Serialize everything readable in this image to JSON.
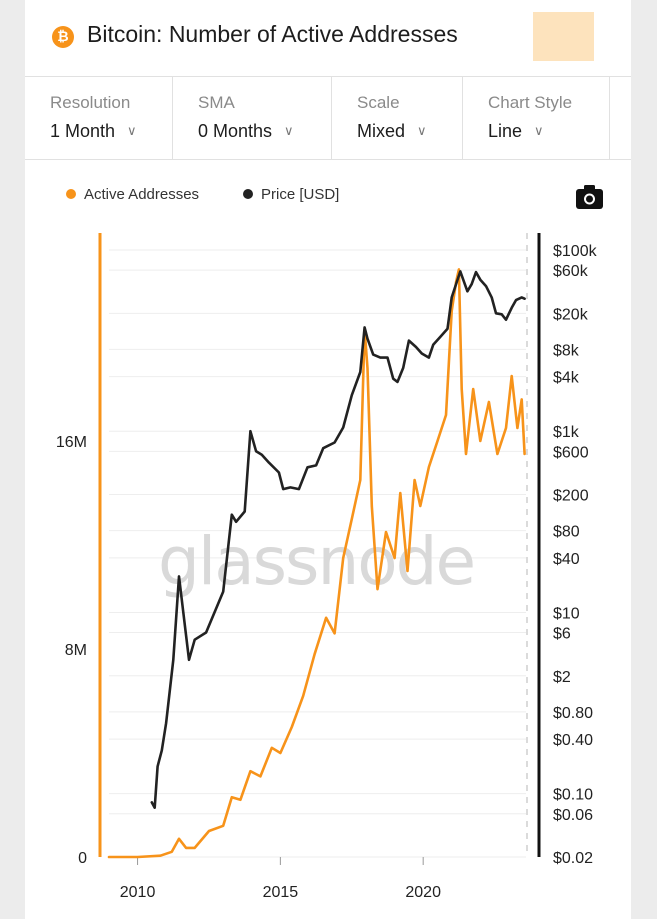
{
  "header": {
    "title": "Bitcoin: Number of Active Addresses",
    "icon": "bitcoin-icon",
    "icon_glyph": "₿"
  },
  "controls": [
    {
      "label": "Resolution",
      "value": "1 Month"
    },
    {
      "label": "SMA",
      "value": "0 Months"
    },
    {
      "label": "Scale",
      "value": "Mixed"
    },
    {
      "label": "Chart Style",
      "value": "Line"
    }
  ],
  "legend": [
    {
      "name": "Active Addresses",
      "color": "#f7931a"
    },
    {
      "name": "Price [USD]",
      "color": "#222222"
    }
  ],
  "watermark": "glassnode",
  "chart_data": {
    "type": "line",
    "x_ticks": [
      "2010",
      "2015",
      "2020"
    ],
    "left_axis": {
      "ticks": [
        {
          "v": 0,
          "label": "0"
        },
        {
          "v": 8000000,
          "label": "8M"
        },
        {
          "v": 16000000,
          "label": "16M"
        }
      ],
      "ylim": [
        0,
        24000000
      ],
      "scale": "linear"
    },
    "right_axis": {
      "scale": "log",
      "ylim": [
        0.02,
        100000
      ],
      "ticks": [
        {
          "v": 100000,
          "label": "$100k"
        },
        {
          "v": 60000,
          "label": "$60k"
        },
        {
          "v": 20000,
          "label": "$20k"
        },
        {
          "v": 8000,
          "label": "$8k"
        },
        {
          "v": 4000,
          "label": "$4k"
        },
        {
          "v": 1000,
          "label": "$1k"
        },
        {
          "v": 600,
          "label": "$600"
        },
        {
          "v": 200,
          "label": "$200"
        },
        {
          "v": 80,
          "label": "$80"
        },
        {
          "v": 40,
          "label": "$40"
        },
        {
          "v": 10,
          "label": "$10"
        },
        {
          "v": 6,
          "label": "$6"
        },
        {
          "v": 2,
          "label": "$2"
        },
        {
          "v": 0.8,
          "label": "$0.80"
        },
        {
          "v": 0.4,
          "label": "$0.40"
        },
        {
          "v": 0.1,
          "label": "$0.10"
        },
        {
          "v": 0.06,
          "label": "$0.06"
        },
        {
          "v": 0.02,
          "label": "$0.02"
        }
      ]
    },
    "series": [
      {
        "name": "Active Addresses",
        "axis": "left",
        "color": "#f7931a",
        "x": [
          2009.0,
          2010.0,
          2010.8,
          2011.2,
          2011.45,
          2011.7,
          2012.0,
          2012.5,
          2013.0,
          2013.3,
          2013.6,
          2013.95,
          2014.3,
          2014.7,
          2015.0,
          2015.4,
          2015.8,
          2016.2,
          2016.6,
          2016.9,
          2017.2,
          2017.5,
          2017.8,
          2017.95,
          2018.05,
          2018.2,
          2018.4,
          2018.7,
          2019.0,
          2019.2,
          2019.45,
          2019.7,
          2019.9,
          2020.2,
          2020.5,
          2020.8,
          2021.0,
          2021.15,
          2021.25,
          2021.35,
          2021.5,
          2021.75,
          2022.0,
          2022.3,
          2022.6,
          2022.9,
          2023.1,
          2023.3,
          2023.45,
          2023.55
        ],
        "y": [
          0,
          0,
          50000,
          200000,
          700000,
          350000,
          350000,
          1000000,
          1200000,
          2300000,
          2200000,
          3300000,
          3100000,
          4200000,
          4000000,
          5000000,
          6200000,
          7800000,
          9200000,
          8600000,
          11500000,
          13000000,
          14500000,
          20300000,
          18800000,
          13500000,
          10300000,
          12500000,
          11500000,
          14000000,
          11000000,
          14500000,
          13500000,
          15000000,
          16000000,
          17000000,
          21000000,
          22100000,
          22600000,
          18000000,
          15500000,
          18000000,
          16000000,
          17500000,
          15500000,
          16500000,
          18500000,
          16500000,
          17600000,
          15500000
        ]
      },
      {
        "name": "Price [USD]",
        "axis": "right",
        "color": "#222222",
        "x": [
          2010.5,
          2010.6,
          2010.7,
          2010.85,
          2011.0,
          2011.25,
          2011.45,
          2011.6,
          2011.8,
          2012.0,
          2012.4,
          2012.8,
          2013.0,
          2013.3,
          2013.45,
          2013.75,
          2013.95,
          2014.15,
          2014.35,
          2014.6,
          2014.95,
          2015.1,
          2015.35,
          2015.65,
          2015.95,
          2016.25,
          2016.5,
          2016.9,
          2017.2,
          2017.5,
          2017.8,
          2017.95,
          2018.05,
          2018.25,
          2018.5,
          2018.75,
          2018.95,
          2019.1,
          2019.3,
          2019.5,
          2019.75,
          2019.95,
          2020.2,
          2020.35,
          2020.6,
          2020.85,
          2021.0,
          2021.3,
          2021.55,
          2021.7,
          2021.85,
          2022.0,
          2022.2,
          2022.4,
          2022.55,
          2022.75,
          2022.9,
          2023.1,
          2023.25,
          2023.45,
          2023.55
        ],
        "y": [
          0.08,
          0.07,
          0.2,
          0.3,
          0.6,
          3,
          25,
          10,
          3,
          5,
          6,
          12,
          17,
          120,
          100,
          130,
          1000,
          600,
          550,
          450,
          350,
          230,
          240,
          230,
          400,
          420,
          650,
          750,
          1100,
          2500,
          4500,
          14000,
          10500,
          7000,
          6500,
          6500,
          3800,
          3500,
          5000,
          10000,
          8500,
          7200,
          6500,
          9000,
          11000,
          13500,
          30000,
          58000,
          35000,
          42000,
          57000,
          47000,
          40000,
          30000,
          20000,
          19500,
          17000,
          23000,
          28000,
          30000,
          29000
        ]
      }
    ]
  }
}
